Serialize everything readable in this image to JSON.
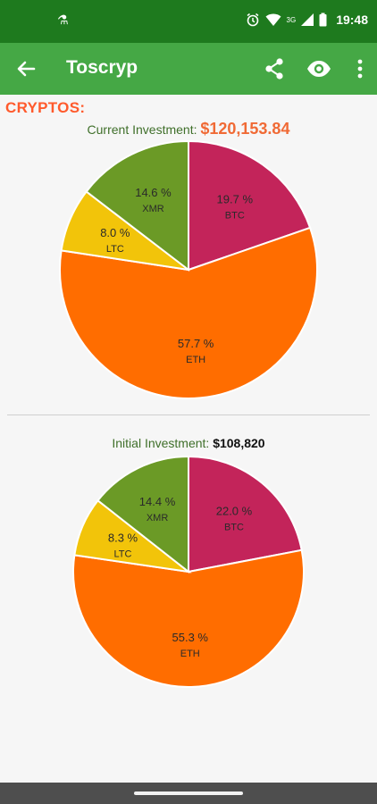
{
  "status": {
    "time": "19:48",
    "network": "3G"
  },
  "app": {
    "title": "Toscryp"
  },
  "section": {
    "title": "CRYPTOS:"
  },
  "current": {
    "label": "Current Investment:",
    "value": "$120,153.84"
  },
  "initial": {
    "label": "Initial Investment:",
    "value": "$108,820"
  },
  "colors": {
    "btc": "#c3245a",
    "eth": "#ff6d00",
    "ltc": "#f2c40a",
    "xmr": "#6b9a26",
    "statusbar": "#1e7a1e",
    "appbar": "#45a845",
    "accent": "#f06a35"
  },
  "chart_data": [
    {
      "type": "pie",
      "slices": [
        {
          "label": "BTC",
          "value": 19.7,
          "pct_text": "19.7 %",
          "color": "#c3245a"
        },
        {
          "label": "ETH",
          "value": 57.7,
          "pct_text": "57.7 %",
          "color": "#ff6d00"
        },
        {
          "label": "LTC",
          "value": 8.0,
          "pct_text": "8.0 %",
          "color": "#f2c40a"
        },
        {
          "label": "XMR",
          "value": 14.6,
          "pct_text": "14.6 %",
          "color": "#6b9a26"
        }
      ]
    },
    {
      "type": "pie",
      "slices": [
        {
          "label": "BTC",
          "value": 22.0,
          "pct_text": "22.0 %",
          "color": "#c3245a"
        },
        {
          "label": "ETH",
          "value": 55.3,
          "pct_text": "55.3 %",
          "color": "#ff6d00"
        },
        {
          "label": "LTC",
          "value": 8.3,
          "pct_text": "8.3 %",
          "color": "#f2c40a"
        },
        {
          "label": "XMR",
          "value": 14.4,
          "pct_text": "14.4 %",
          "color": "#6b9a26"
        }
      ]
    }
  ]
}
